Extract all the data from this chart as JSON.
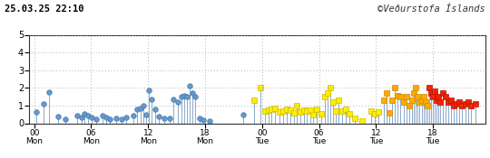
{
  "title_left": "25.03.25 22:10",
  "title_right": "©Veðurstofa Íslands",
  "xlim": [
    -0.5,
    47.5
  ],
  "ylim": [
    0,
    5
  ],
  "yticks": [
    0,
    1,
    2,
    3,
    4,
    5
  ],
  "xtick_positions": [
    0,
    6,
    12,
    18,
    24,
    30,
    36,
    42
  ],
  "xtick_labels_top": [
    "00",
    "06",
    "12",
    "18",
    "00",
    "06",
    "12",
    "18"
  ],
  "xtick_labels_bot": [
    "Mon",
    "Mon",
    "Mon",
    "Mon",
    "Tue",
    "Tue",
    "Tue",
    "Tue"
  ],
  "background_color": "#ffffff",
  "grid_color": "#999999",
  "stem_color": "#88aacc",
  "earthquakes": [
    {
      "t": 0.2,
      "m": 0.65,
      "color": "blue"
    },
    {
      "t": 1.0,
      "m": 1.1,
      "color": "blue"
    },
    {
      "t": 1.6,
      "m": 1.75,
      "color": "blue"
    },
    {
      "t": 2.5,
      "m": 0.4,
      "color": "blue"
    },
    {
      "t": 3.3,
      "m": 0.25,
      "color": "blue"
    },
    {
      "t": 4.5,
      "m": 0.45,
      "color": "blue"
    },
    {
      "t": 5.0,
      "m": 0.35,
      "color": "blue"
    },
    {
      "t": 5.3,
      "m": 0.55,
      "color": "blue"
    },
    {
      "t": 5.7,
      "m": 0.45,
      "color": "blue"
    },
    {
      "t": 6.1,
      "m": 0.35,
      "color": "blue"
    },
    {
      "t": 6.5,
      "m": 0.25,
      "color": "blue"
    },
    {
      "t": 7.2,
      "m": 0.45,
      "color": "blue"
    },
    {
      "t": 7.6,
      "m": 0.35,
      "color": "blue"
    },
    {
      "t": 8.0,
      "m": 0.25,
      "color": "blue"
    },
    {
      "t": 8.6,
      "m": 0.3,
      "color": "blue"
    },
    {
      "t": 9.2,
      "m": 0.25,
      "color": "blue"
    },
    {
      "t": 9.7,
      "m": 0.35,
      "color": "blue"
    },
    {
      "t": 10.5,
      "m": 0.45,
      "color": "blue"
    },
    {
      "t": 10.8,
      "m": 0.8,
      "color": "blue"
    },
    {
      "t": 11.2,
      "m": 0.85,
      "color": "blue"
    },
    {
      "t": 11.5,
      "m": 1.0,
      "color": "blue"
    },
    {
      "t": 11.8,
      "m": 0.5,
      "color": "blue"
    },
    {
      "t": 12.1,
      "m": 1.85,
      "color": "blue"
    },
    {
      "t": 12.4,
      "m": 1.35,
      "color": "blue"
    },
    {
      "t": 12.7,
      "m": 0.8,
      "color": "blue"
    },
    {
      "t": 13.1,
      "m": 0.4,
      "color": "blue"
    },
    {
      "t": 13.7,
      "m": 0.3,
      "color": "blue"
    },
    {
      "t": 14.3,
      "m": 0.3,
      "color": "blue"
    },
    {
      "t": 14.7,
      "m": 1.35,
      "color": "blue"
    },
    {
      "t": 15.1,
      "m": 1.2,
      "color": "blue"
    },
    {
      "t": 15.5,
      "m": 1.5,
      "color": "blue"
    },
    {
      "t": 15.8,
      "m": 1.55,
      "color": "blue"
    },
    {
      "t": 16.1,
      "m": 1.5,
      "color": "blue"
    },
    {
      "t": 16.4,
      "m": 2.1,
      "color": "blue"
    },
    {
      "t": 16.7,
      "m": 1.7,
      "color": "blue"
    },
    {
      "t": 17.0,
      "m": 1.5,
      "color": "blue"
    },
    {
      "t": 17.4,
      "m": 0.3,
      "color": "blue"
    },
    {
      "t": 17.8,
      "m": 0.2,
      "color": "blue"
    },
    {
      "t": 18.5,
      "m": 0.15,
      "color": "blue"
    },
    {
      "t": 22.0,
      "m": 0.5,
      "color": "blue"
    },
    {
      "t": 23.2,
      "m": 1.3,
      "color": "yellow"
    },
    {
      "t": 23.8,
      "m": 2.0,
      "color": "yellow"
    },
    {
      "t": 24.3,
      "m": 0.7,
      "color": "yellow"
    },
    {
      "t": 24.7,
      "m": 0.75,
      "color": "yellow"
    },
    {
      "t": 25.0,
      "m": 0.8,
      "color": "yellow"
    },
    {
      "t": 25.4,
      "m": 0.85,
      "color": "yellow"
    },
    {
      "t": 25.8,
      "m": 0.65,
      "color": "yellow"
    },
    {
      "t": 26.2,
      "m": 0.7,
      "color": "yellow"
    },
    {
      "t": 26.6,
      "m": 0.8,
      "color": "yellow"
    },
    {
      "t": 27.0,
      "m": 0.75,
      "color": "yellow"
    },
    {
      "t": 27.4,
      "m": 0.6,
      "color": "yellow"
    },
    {
      "t": 27.7,
      "m": 1.0,
      "color": "yellow"
    },
    {
      "t": 28.0,
      "m": 0.65,
      "color": "yellow"
    },
    {
      "t": 28.4,
      "m": 0.75,
      "color": "yellow"
    },
    {
      "t": 28.7,
      "m": 0.7,
      "color": "yellow"
    },
    {
      "t": 29.1,
      "m": 0.75,
      "color": "yellow"
    },
    {
      "t": 29.4,
      "m": 0.5,
      "color": "yellow"
    },
    {
      "t": 29.8,
      "m": 0.8,
      "color": "yellow"
    },
    {
      "t": 30.2,
      "m": 0.55,
      "color": "yellow"
    },
    {
      "t": 30.6,
      "m": 1.5,
      "color": "yellow"
    },
    {
      "t": 30.9,
      "m": 1.7,
      "color": "yellow"
    },
    {
      "t": 31.2,
      "m": 2.0,
      "color": "yellow"
    },
    {
      "t": 31.5,
      "m": 1.2,
      "color": "yellow"
    },
    {
      "t": 31.8,
      "m": 0.7,
      "color": "yellow"
    },
    {
      "t": 32.1,
      "m": 1.3,
      "color": "yellow"
    },
    {
      "t": 32.4,
      "m": 0.7,
      "color": "yellow"
    },
    {
      "t": 32.8,
      "m": 0.8,
      "color": "yellow"
    },
    {
      "t": 33.2,
      "m": 0.55,
      "color": "yellow"
    },
    {
      "t": 33.8,
      "m": 0.3,
      "color": "yellow"
    },
    {
      "t": 34.5,
      "m": 0.15,
      "color": "yellow"
    },
    {
      "t": 35.5,
      "m": 0.7,
      "color": "yellow"
    },
    {
      "t": 35.9,
      "m": 0.55,
      "color": "yellow"
    },
    {
      "t": 36.3,
      "m": 0.65,
      "color": "yellow"
    },
    {
      "t": 36.8,
      "m": 1.3,
      "color": "orange"
    },
    {
      "t": 37.1,
      "m": 1.7,
      "color": "orange"
    },
    {
      "t": 37.4,
      "m": 0.6,
      "color": "orange"
    },
    {
      "t": 37.7,
      "m": 1.3,
      "color": "orange"
    },
    {
      "t": 38.0,
      "m": 2.0,
      "color": "orange"
    },
    {
      "t": 38.3,
      "m": 1.55,
      "color": "orange"
    },
    {
      "t": 38.6,
      "m": 1.5,
      "color": "orange"
    },
    {
      "t": 38.9,
      "m": 1.2,
      "color": "orange"
    },
    {
      "t": 39.2,
      "m": 1.5,
      "color": "orange"
    },
    {
      "t": 39.5,
      "m": 1.0,
      "color": "orange"
    },
    {
      "t": 39.8,
      "m": 1.3,
      "color": "orange"
    },
    {
      "t": 40.0,
      "m": 1.7,
      "color": "orange"
    },
    {
      "t": 40.2,
      "m": 2.0,
      "color": "orange"
    },
    {
      "t": 40.4,
      "m": 1.5,
      "color": "orange"
    },
    {
      "t": 40.6,
      "m": 1.2,
      "color": "orange"
    },
    {
      "t": 40.8,
      "m": 1.3,
      "color": "orange"
    },
    {
      "t": 41.0,
      "m": 1.5,
      "color": "orange"
    },
    {
      "t": 41.2,
      "m": 1.2,
      "color": "orange"
    },
    {
      "t": 41.4,
      "m": 1.0,
      "color": "orange"
    },
    {
      "t": 41.6,
      "m": 2.0,
      "color": "red"
    },
    {
      "t": 41.8,
      "m": 1.7,
      "color": "red"
    },
    {
      "t": 42.0,
      "m": 1.5,
      "color": "red"
    },
    {
      "t": 42.2,
      "m": 1.8,
      "color": "red"
    },
    {
      "t": 42.4,
      "m": 1.3,
      "color": "red"
    },
    {
      "t": 42.6,
      "m": 1.5,
      "color": "red"
    },
    {
      "t": 42.8,
      "m": 1.2,
      "color": "red"
    },
    {
      "t": 43.0,
      "m": 1.7,
      "color": "red"
    },
    {
      "t": 43.3,
      "m": 1.5,
      "color": "red"
    },
    {
      "t": 43.6,
      "m": 1.2,
      "color": "red"
    },
    {
      "t": 43.9,
      "m": 1.3,
      "color": "red"
    },
    {
      "t": 44.2,
      "m": 1.0,
      "color": "red"
    },
    {
      "t": 44.5,
      "m": 1.1,
      "color": "red"
    },
    {
      "t": 44.8,
      "m": 1.2,
      "color": "red"
    },
    {
      "t": 45.1,
      "m": 1.0,
      "color": "red"
    },
    {
      "t": 45.4,
      "m": 1.1,
      "color": "red"
    },
    {
      "t": 45.7,
      "m": 1.2,
      "color": "red"
    },
    {
      "t": 46.0,
      "m": 1.0,
      "color": "red"
    },
    {
      "t": 46.5,
      "m": 1.1,
      "color": "red"
    }
  ]
}
